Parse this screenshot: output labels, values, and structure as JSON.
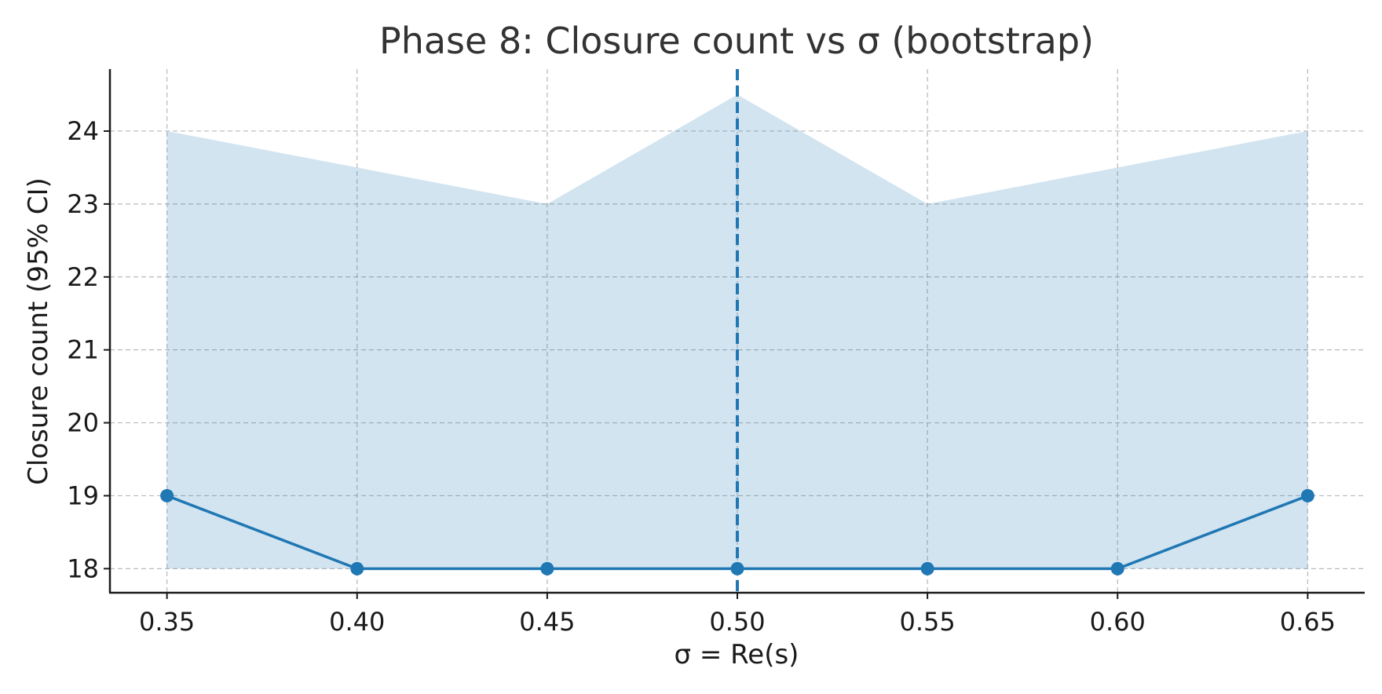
{
  "chart_data": {
    "type": "line",
    "title": "Phase 8: Closure count vs σ (bootstrap)",
    "xlabel": "σ = Re(s)",
    "ylabel": "Closure count (95% CI)",
    "x": [
      0.35,
      0.4,
      0.45,
      0.5,
      0.55,
      0.6,
      0.65
    ],
    "x_tick_labels": [
      "0.35",
      "0.40",
      "0.45",
      "0.50",
      "0.55",
      "0.60",
      "0.65"
    ],
    "y_ticks": [
      18,
      19,
      20,
      21,
      22,
      23,
      24
    ],
    "xlim": [
      0.335,
      0.665
    ],
    "ylim": [
      17.67,
      24.85
    ],
    "series": [
      {
        "values": [
          19,
          18,
          18,
          18,
          18,
          18,
          19
        ],
        "color": "#1f77b4",
        "markers": true
      }
    ],
    "confidence_band": {
      "lower": [
        18,
        18,
        18,
        18,
        18,
        18,
        18
      ],
      "upper": [
        24,
        23.5,
        23,
        24.5,
        23,
        23.5,
        24
      ],
      "color": "#1f77b4",
      "opacity": 0.2
    },
    "reference_line": {
      "x": 0.5,
      "style": "dashed",
      "color": "#1f77b4"
    },
    "grid": true,
    "grid_style": "dashed"
  }
}
